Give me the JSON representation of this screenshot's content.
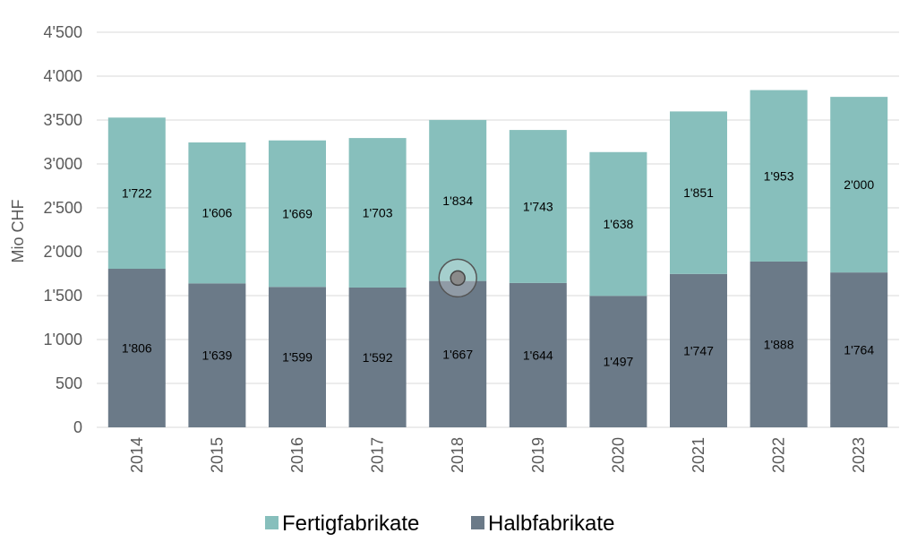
{
  "chart_data": {
    "type": "bar",
    "stacked": true,
    "categories": [
      "2014",
      "2015",
      "2016",
      "2017",
      "2018",
      "2019",
      "2020",
      "2021",
      "2022",
      "2023"
    ],
    "series": [
      {
        "name": "Halbfabrikate",
        "values": [
          1806,
          1639,
          1599,
          1592,
          1667,
          1644,
          1497,
          1747,
          1888,
          1764
        ],
        "labels": [
          "1'806",
          "1'639",
          "1'599",
          "1'592",
          "1'667",
          "1'644",
          "1'497",
          "1'747",
          "1'888",
          "1'764"
        ],
        "color": "#6b7a88"
      },
      {
        "name": "Fertigfabrikate",
        "values": [
          1722,
          1606,
          1669,
          1703,
          1834,
          1743,
          1638,
          1851,
          1953,
          2000
        ],
        "labels": [
          "1'722",
          "1'606",
          "1'669",
          "1'703",
          "1'834",
          "1'743",
          "1'638",
          "1'851",
          "1'953",
          "2'000"
        ],
        "color": "#87bfbc"
      }
    ],
    "ylabel": "Mio CHF",
    "ylim": [
      0,
      4500
    ],
    "yticks": [
      0,
      500,
      1000,
      1500,
      2000,
      2500,
      3000,
      3500,
      4000,
      4500
    ],
    "ytick_labels": [
      "0",
      "500",
      "1'000",
      "1'500",
      "2'000",
      "2'500",
      "3'000",
      "3'500",
      "4'000",
      "4'500"
    ],
    "grid": true,
    "legend": {
      "placement": "bottom-center",
      "order": [
        "Fertigfabrikate",
        "Halbfabrikate"
      ]
    },
    "marker": {
      "category": "2018",
      "value": 1700
    }
  }
}
